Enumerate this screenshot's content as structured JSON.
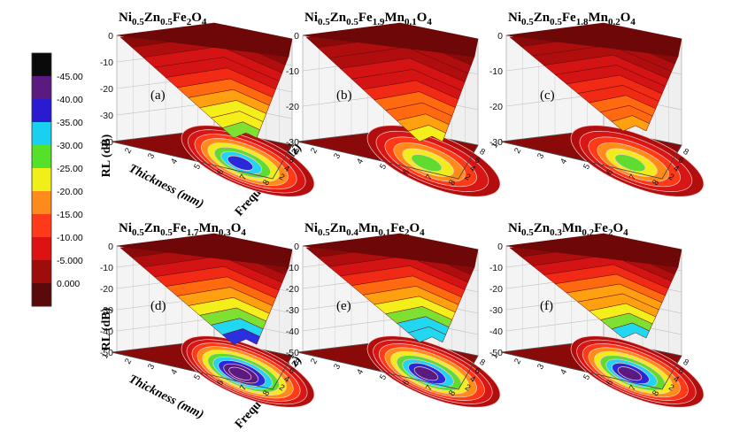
{
  "figure": {
    "colorbar": {
      "labels": [
        "-45.00",
        "-40.00",
        "-35.00",
        "-30.00",
        "-25.00",
        "-20.00",
        "-15.00",
        "-10.00",
        "-5.000",
        "0.000"
      ],
      "colors": [
        "#0a0a0a",
        "#5a1a80",
        "#2a1ad0",
        "#1ad0f0",
        "#55e02a",
        "#f0f018",
        "#ff8c1a",
        "#ff3a1a",
        "#dd1212",
        "#9e0c0c",
        "#5a0a0a"
      ]
    },
    "axis_labels": {
      "z": "RL (dB)",
      "thickness": "Thickness (mm)",
      "frequency": "Frequency (GHz)"
    }
  },
  "chart_data": [
    {
      "type": "surface",
      "panel_label": "(a)",
      "title": {
        "parts": [
          "Ni",
          "0.5",
          "Zn",
          "0.5",
          "Fe",
          "2",
          "O",
          "4"
        ]
      },
      "z_ticks": [
        "0",
        "-10",
        "-20",
        "-30",
        "-40"
      ],
      "zlim": [
        -40,
        0
      ],
      "thickness_ticks": [
        "1",
        "2",
        "3",
        "4",
        "5",
        "6",
        "7",
        "8"
      ],
      "frequency_ticks": [
        "2",
        "4",
        "6",
        "8"
      ],
      "min_rl": -40
    },
    {
      "type": "surface",
      "panel_label": "(b)",
      "title": {
        "parts": [
          "Ni",
          "0.5",
          "Zn",
          "0.5",
          "Fe",
          "1.9",
          "Mn",
          "0.1",
          "O",
          "4"
        ]
      },
      "z_ticks": [
        "0",
        "-10",
        "-20",
        "-30"
      ],
      "zlim": [
        -30,
        0
      ],
      "thickness_ticks": [
        "1",
        "2",
        "3",
        "4",
        "5",
        "6",
        "7",
        "8"
      ],
      "frequency_ticks": [
        "2",
        "4",
        "6",
        "8"
      ],
      "min_rl": -31
    },
    {
      "type": "surface",
      "panel_label": "(c)",
      "title": {
        "parts": [
          "Ni",
          "0.5",
          "Zn",
          "0.5",
          "Fe",
          "1.8",
          "Mn",
          "0.2",
          "O",
          "4"
        ]
      },
      "z_ticks": [
        "0",
        "-10",
        "-20",
        "-30"
      ],
      "zlim": [
        -30,
        0
      ],
      "thickness_ticks": [
        "1",
        "2",
        "3",
        "4",
        "5",
        "6",
        "7",
        "8"
      ],
      "frequency_ticks": [
        "2",
        "4",
        "6",
        "8"
      ],
      "min_rl": -28
    },
    {
      "type": "surface",
      "panel_label": "(d)",
      "title": {
        "parts": [
          "Ni",
          "0.5",
          "Zn",
          "0.5",
          "Fe",
          "1.7",
          "Mn",
          "0.3",
          "O",
          "4"
        ]
      },
      "z_ticks": [
        "0",
        "-10",
        "-20",
        "-30",
        "-40",
        "-50"
      ],
      "zlim": [
        -50,
        0
      ],
      "thickness_ticks": [
        "1",
        "2",
        "3",
        "4",
        "5",
        "6",
        "7",
        "8"
      ],
      "frequency_ticks": [
        "2",
        "4",
        "6",
        "8"
      ],
      "min_rl": -48
    },
    {
      "type": "surface",
      "panel_label": "(e)",
      "title": {
        "parts": [
          "Ni",
          "0.5",
          "Zn",
          "0.4",
          "Mn",
          "0.1",
          "Fe",
          "2",
          "O",
          "4"
        ]
      },
      "z_ticks": [
        "0",
        "-10",
        "-20",
        "-30",
        "-40",
        "-50"
      ],
      "zlim": [
        -50,
        0
      ],
      "thickness_ticks": [
        "1",
        "2",
        "3",
        "4",
        "5",
        "6",
        "7",
        "8"
      ],
      "frequency_ticks": [
        "2",
        "4",
        "6",
        "8"
      ],
      "min_rl": -47
    },
    {
      "type": "surface",
      "panel_label": "(f)",
      "title": {
        "parts": [
          "Ni",
          "0.5",
          "Zn",
          "0.3",
          "Mn",
          "0.2",
          "Fe",
          "2",
          "O",
          "4"
        ]
      },
      "z_ticks": [
        "0",
        "-10",
        "-20",
        "-30",
        "-40",
        "-50"
      ],
      "zlim": [
        -50,
        0
      ],
      "thickness_ticks": [
        "1",
        "2",
        "3",
        "4",
        "5",
        "6",
        "7",
        "8"
      ],
      "frequency_ticks": [
        "2",
        "4",
        "6",
        "8"
      ],
      "min_rl": -45
    }
  ]
}
